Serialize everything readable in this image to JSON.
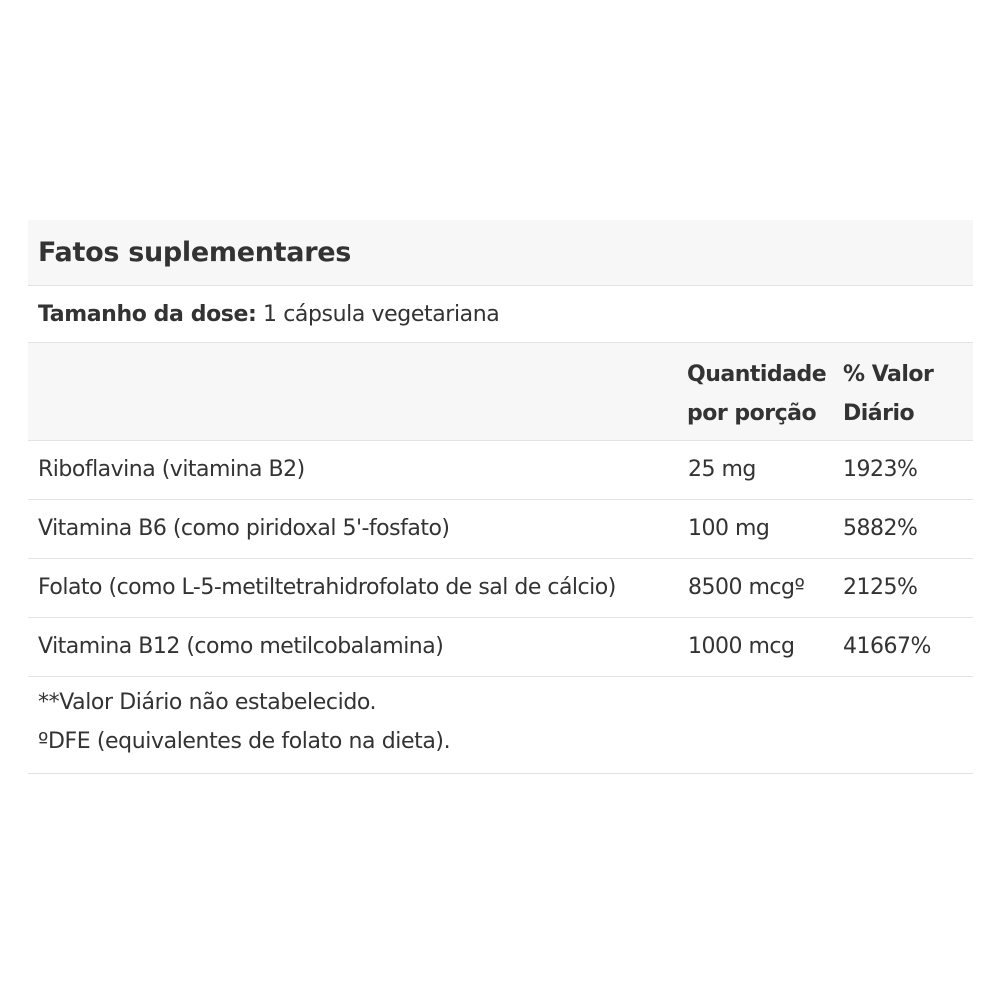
{
  "panel": {
    "title": "Fatos suplementares",
    "serving": {
      "label": "Tamanho da dose:",
      "value": "1 cápsula vegetariana"
    },
    "headers": {
      "amount": "Quantidade\npor porção",
      "daily_value": "% Valor\nDiário"
    },
    "rows": [
      {
        "name": "Riboflavina (vitamina B2)",
        "amount": "25 mg",
        "daily_value": "1923%"
      },
      {
        "name": "Vitamina B6 (como piridoxal 5'-fosfato)",
        "amount": "100 mg",
        "daily_value": "5882%"
      },
      {
        "name": "Folato (como L-5-metiltetrahidrofolato de sal de cálcio)",
        "amount": "8500 mcgº",
        "daily_value": "2125%"
      },
      {
        "name": "Vitamina B12 (como metilcobalamina)",
        "amount": "1000 mcg",
        "daily_value": "41667%"
      }
    ],
    "footnotes": [
      "**Valor Diário não estabelecido.",
      "ºDFE (equivalentes de folato na dieta)."
    ]
  }
}
